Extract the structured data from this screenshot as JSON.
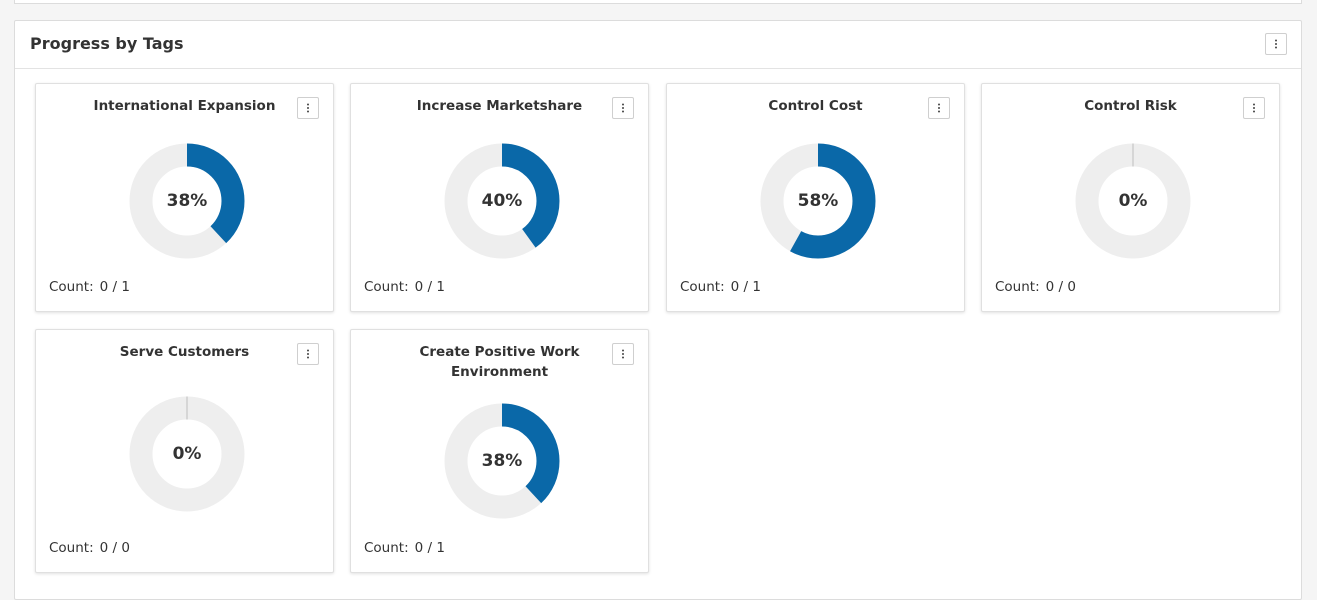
{
  "panel": {
    "title": "Progress by Tags",
    "menu_icon": "kebab-vertical-icon"
  },
  "colors": {
    "progress": "#0a68a8",
    "track": "#eeeeee"
  },
  "count_label": "Count:",
  "cards": [
    {
      "title": "International Expansion",
      "percent": 38,
      "percent_label": "38%",
      "count": "0 / 1"
    },
    {
      "title": "Increase Marketshare",
      "percent": 40,
      "percent_label": "40%",
      "count": "0 / 1"
    },
    {
      "title": "Control Cost",
      "percent": 58,
      "percent_label": "58%",
      "count": "0 / 1"
    },
    {
      "title": "Control Risk",
      "percent": 0,
      "percent_label": "0%",
      "count": "0 / 0"
    },
    {
      "title": "Serve Customers",
      "percent": 0,
      "percent_label": "0%",
      "count": "0 / 0"
    },
    {
      "title": "Create Positive Work Environment",
      "percent": 38,
      "percent_label": "38%",
      "count": "0 / 1"
    }
  ]
}
